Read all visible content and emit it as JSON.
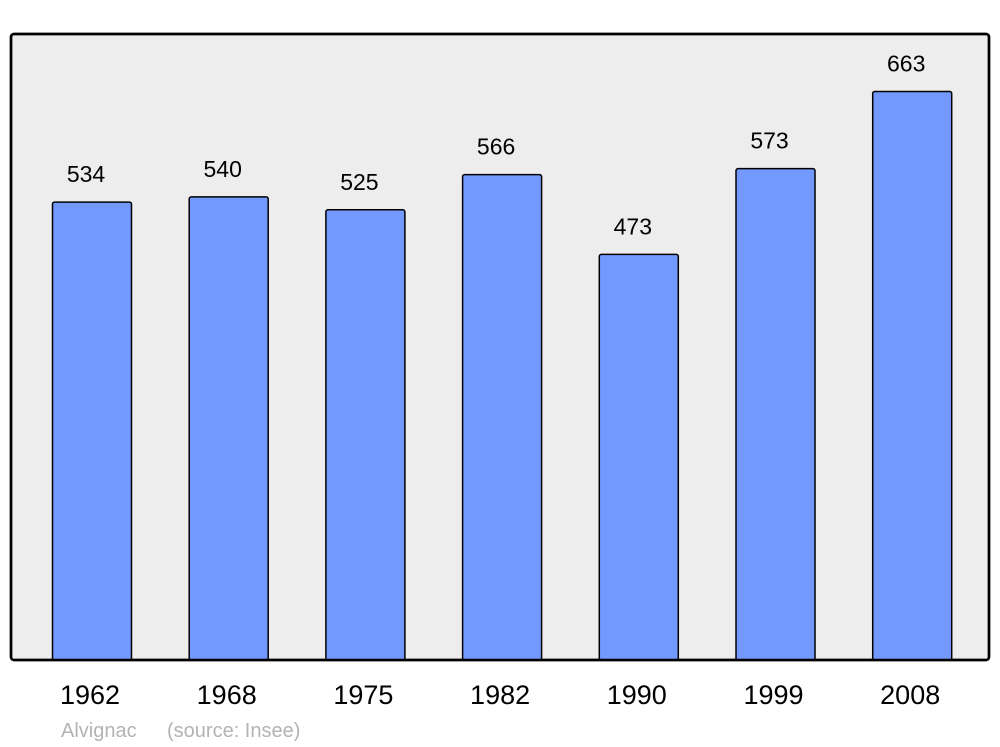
{
  "chart_data": {
    "type": "bar",
    "categories": [
      "1962",
      "1968",
      "1975",
      "1982",
      "1990",
      "1999",
      "2008"
    ],
    "values": [
      534,
      540,
      525,
      566,
      473,
      573,
      663
    ],
    "data_labels": [
      "534",
      "540",
      "525",
      "566",
      "473",
      "573",
      "663"
    ],
    "title": "",
    "xlabel": "",
    "ylabel": "",
    "ylim": [
      0,
      730
    ],
    "grid": false,
    "colors": {
      "bar": "#7399ff",
      "background": "#ededed",
      "frame": "#000000"
    }
  },
  "footer": {
    "place": "Alvignac",
    "source": "(source: Insee)"
  }
}
